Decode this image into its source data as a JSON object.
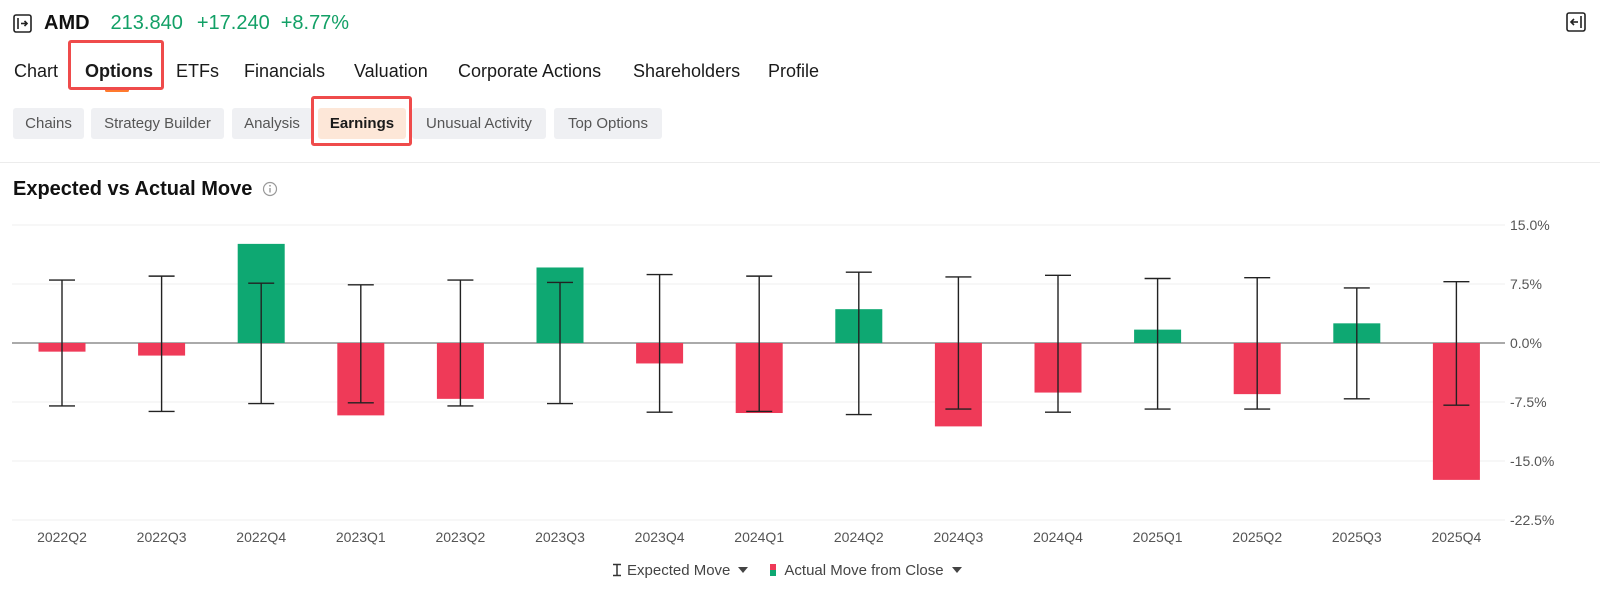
{
  "header": {
    "symbol": "AMD",
    "price": "213.840",
    "change": "+17.240",
    "change_pct": "+8.77%",
    "price_color": "#12a066",
    "expand_icon": "panel-expand-icon",
    "collapse_icon": "panel-collapse-icon"
  },
  "nav": {
    "tabs": [
      {
        "label": "Chart"
      },
      {
        "label": "Options"
      },
      {
        "label": "ETFs"
      },
      {
        "label": "Financials"
      },
      {
        "label": "Valuation"
      },
      {
        "label": "Corporate Actions"
      },
      {
        "label": "Shareholders"
      },
      {
        "label": "Profile"
      }
    ],
    "active": "Options"
  },
  "subtabs": {
    "items": [
      {
        "label": "Chains"
      },
      {
        "label": "Strategy Builder"
      },
      {
        "label": "Analysis"
      },
      {
        "label": "Earnings"
      },
      {
        "label": "Unusual Activity"
      },
      {
        "label": "Top Options"
      }
    ],
    "active": "Earnings"
  },
  "section": {
    "title": "Expected vs Actual Move",
    "info_icon": "info-icon"
  },
  "legend": {
    "expected": "Expected Move",
    "actual": "Actual Move from Close"
  },
  "colors": {
    "positive": "#0ea872",
    "negative": "#ef3a58",
    "accent": "#ff7a2e",
    "highlight": "#ef4b4b"
  },
  "chart_data": {
    "type": "bar",
    "title": "Expected vs Actual Move",
    "categories": [
      "2022Q2",
      "2022Q3",
      "2022Q4",
      "2023Q1",
      "2023Q2",
      "2023Q3",
      "2023Q4",
      "2024Q1",
      "2024Q2",
      "2024Q3",
      "2024Q4",
      "2025Q1",
      "2025Q2",
      "2025Q3",
      "2025Q4"
    ],
    "series": [
      {
        "name": "Actual Move from Close",
        "values": [
          -1.1,
          -1.6,
          12.6,
          -9.2,
          -7.1,
          9.6,
          -2.6,
          -8.9,
          4.3,
          -10.6,
          -6.3,
          1.7,
          -6.5,
          2.5,
          -17.4
        ]
      },
      {
        "name": "Expected Move",
        "values": [
          8.0,
          8.5,
          7.6,
          7.4,
          8.0,
          7.7,
          8.7,
          8.5,
          9.0,
          8.4,
          8.6,
          8.2,
          8.3,
          7.0,
          7.8
        ]
      }
    ],
    "expected_lower": [
      -8.0,
      -8.7,
      -7.7,
      -7.6,
      -8.0,
      -7.7,
      -8.8,
      -8.7,
      -9.1,
      -8.4,
      -8.8,
      -8.4,
      -8.4,
      -7.1,
      -7.9
    ],
    "yticks": [
      "15.0%",
      "7.5%",
      "0.0%",
      "-7.5%",
      "-15.0%",
      "-22.5%"
    ],
    "ylim": [
      -22.5,
      15
    ],
    "grid": true
  }
}
